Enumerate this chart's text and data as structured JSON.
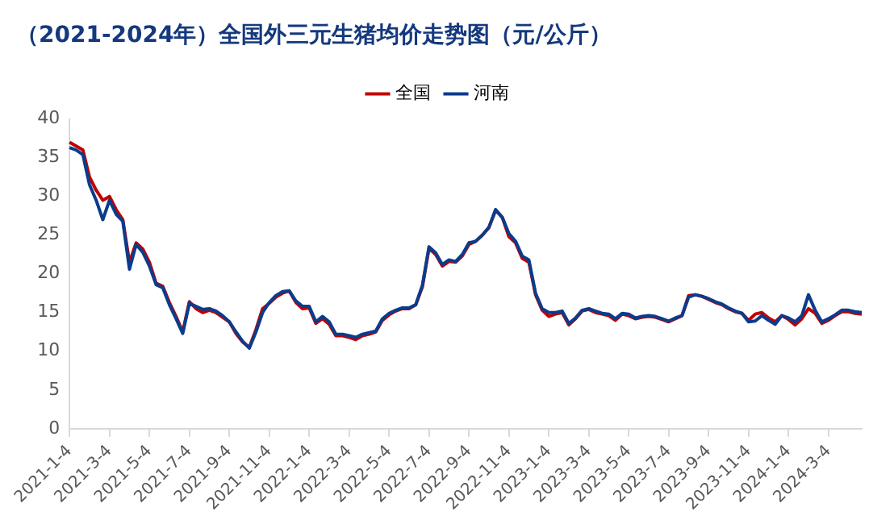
{
  "chart_data": {
    "type": "line",
    "title": "（2021-2024年）全国外三元生猪均价走势图（元/公斤）",
    "categories": [
      "2021-1-4",
      null,
      null,
      null,
      null,
      null,
      "2021-3-4",
      null,
      null,
      null,
      null,
      null,
      "2021-5-4",
      null,
      null,
      null,
      null,
      null,
      "2021-7-4",
      null,
      null,
      null,
      null,
      null,
      "2021-9-4",
      null,
      null,
      null,
      null,
      null,
      "2021-11-4",
      null,
      null,
      null,
      null,
      null,
      "2022-1-4",
      null,
      null,
      null,
      null,
      null,
      "2022-3-4",
      null,
      null,
      null,
      null,
      null,
      "2022-5-4",
      null,
      null,
      null,
      null,
      null,
      "2022-7-4",
      null,
      null,
      null,
      null,
      null,
      "2022-9-4",
      null,
      null,
      null,
      null,
      null,
      "2022-11-4",
      null,
      null,
      null,
      null,
      null,
      "2023-1-4",
      null,
      null,
      null,
      null,
      null,
      "2023-3-4",
      null,
      null,
      null,
      null,
      null,
      "2023-5-4",
      null,
      null,
      null,
      null,
      null,
      "2023-7-4",
      null,
      null,
      null,
      null,
      null,
      "2023-9-4",
      null,
      null,
      null,
      null,
      null,
      "2023-11-4",
      null,
      null,
      null,
      null,
      null,
      "2024-1-4",
      null,
      null,
      null,
      null,
      null,
      "2024-3-4",
      null,
      null,
      null,
      null,
      null
    ],
    "series": [
      {
        "name": "全国",
        "color": "#c00000",
        "values": [
          37.0,
          36.5,
          36.0,
          32.5,
          30.8,
          29.5,
          30.0,
          28.3,
          27.0,
          21.5,
          24.0,
          23.2,
          21.5,
          18.8,
          18.4,
          16.3,
          14.5,
          12.5,
          16.4,
          15.5,
          15.0,
          15.3,
          15.0,
          14.4,
          13.8,
          12.3,
          11.2,
          10.5,
          12.8,
          15.5,
          16.2,
          17.0,
          17.5,
          17.8,
          16.3,
          15.5,
          15.6,
          13.6,
          14.2,
          13.5,
          12.0,
          12.0,
          11.8,
          11.5,
          12.0,
          12.2,
          12.5,
          14.0,
          14.7,
          15.2,
          15.5,
          15.5,
          16.0,
          18.3,
          23.3,
          22.5,
          21.0,
          21.6,
          21.5,
          22.3,
          23.8,
          24.2,
          25.0,
          26.0,
          28.2,
          27.3,
          24.8,
          24.0,
          22.0,
          21.5,
          17.3,
          15.3,
          14.5,
          14.8,
          15.0,
          13.4,
          14.2,
          15.2,
          15.4,
          15.0,
          14.8,
          14.6,
          14.0,
          14.8,
          14.6,
          14.2,
          14.4,
          14.5,
          14.4,
          14.1,
          13.8,
          14.2,
          14.6,
          17.2,
          17.3,
          17.1,
          16.7,
          16.3,
          16.0,
          15.5,
          15.1,
          14.9,
          14.0,
          14.8,
          15.0,
          14.3,
          13.8,
          14.6,
          14.1,
          13.4,
          14.2,
          15.5,
          14.9,
          13.6,
          14.0,
          14.6,
          15.1,
          15.1,
          14.9,
          14.8
        ]
      },
      {
        "name": "河南",
        "color": "#0b3c8c",
        "values": [
          36.3,
          36.0,
          35.4,
          31.5,
          29.5,
          27.0,
          29.5,
          27.7,
          26.8,
          20.6,
          23.8,
          22.8,
          21.0,
          18.6,
          18.2,
          16.0,
          14.2,
          12.3,
          16.2,
          15.8,
          15.4,
          15.5,
          15.2,
          14.6,
          13.8,
          12.5,
          11.3,
          10.4,
          12.5,
          15.0,
          16.3,
          17.2,
          17.7,
          17.8,
          16.5,
          15.8,
          15.8,
          13.8,
          14.5,
          13.8,
          12.2,
          12.2,
          12.0,
          11.8,
          12.2,
          12.4,
          12.6,
          14.2,
          14.9,
          15.3,
          15.6,
          15.6,
          16.0,
          18.5,
          23.5,
          22.7,
          21.2,
          21.8,
          21.6,
          22.5,
          24.0,
          24.2,
          25.0,
          26.0,
          28.3,
          27.3,
          25.2,
          24.2,
          22.3,
          21.8,
          17.5,
          15.5,
          15.0,
          15.0,
          15.2,
          13.6,
          14.3,
          15.3,
          15.5,
          15.2,
          14.9,
          14.8,
          14.2,
          14.9,
          14.8,
          14.3,
          14.5,
          14.6,
          14.5,
          14.2,
          13.9,
          14.3,
          14.6,
          17.0,
          17.3,
          17.1,
          16.8,
          16.4,
          16.1,
          15.6,
          15.2,
          14.9,
          13.8,
          13.9,
          14.6,
          14.0,
          13.5,
          14.6,
          14.3,
          13.8,
          14.6,
          17.3,
          15.3,
          13.8,
          14.2,
          14.7,
          15.3,
          15.3,
          15.1,
          15.0
        ]
      }
    ],
    "ylim": [
      0,
      40
    ],
    "yticks": [
      0,
      5,
      10,
      15,
      20,
      25,
      30,
      35,
      40
    ],
    "grid": false,
    "legend": "top",
    "marker": "none",
    "line_style": "solid"
  }
}
